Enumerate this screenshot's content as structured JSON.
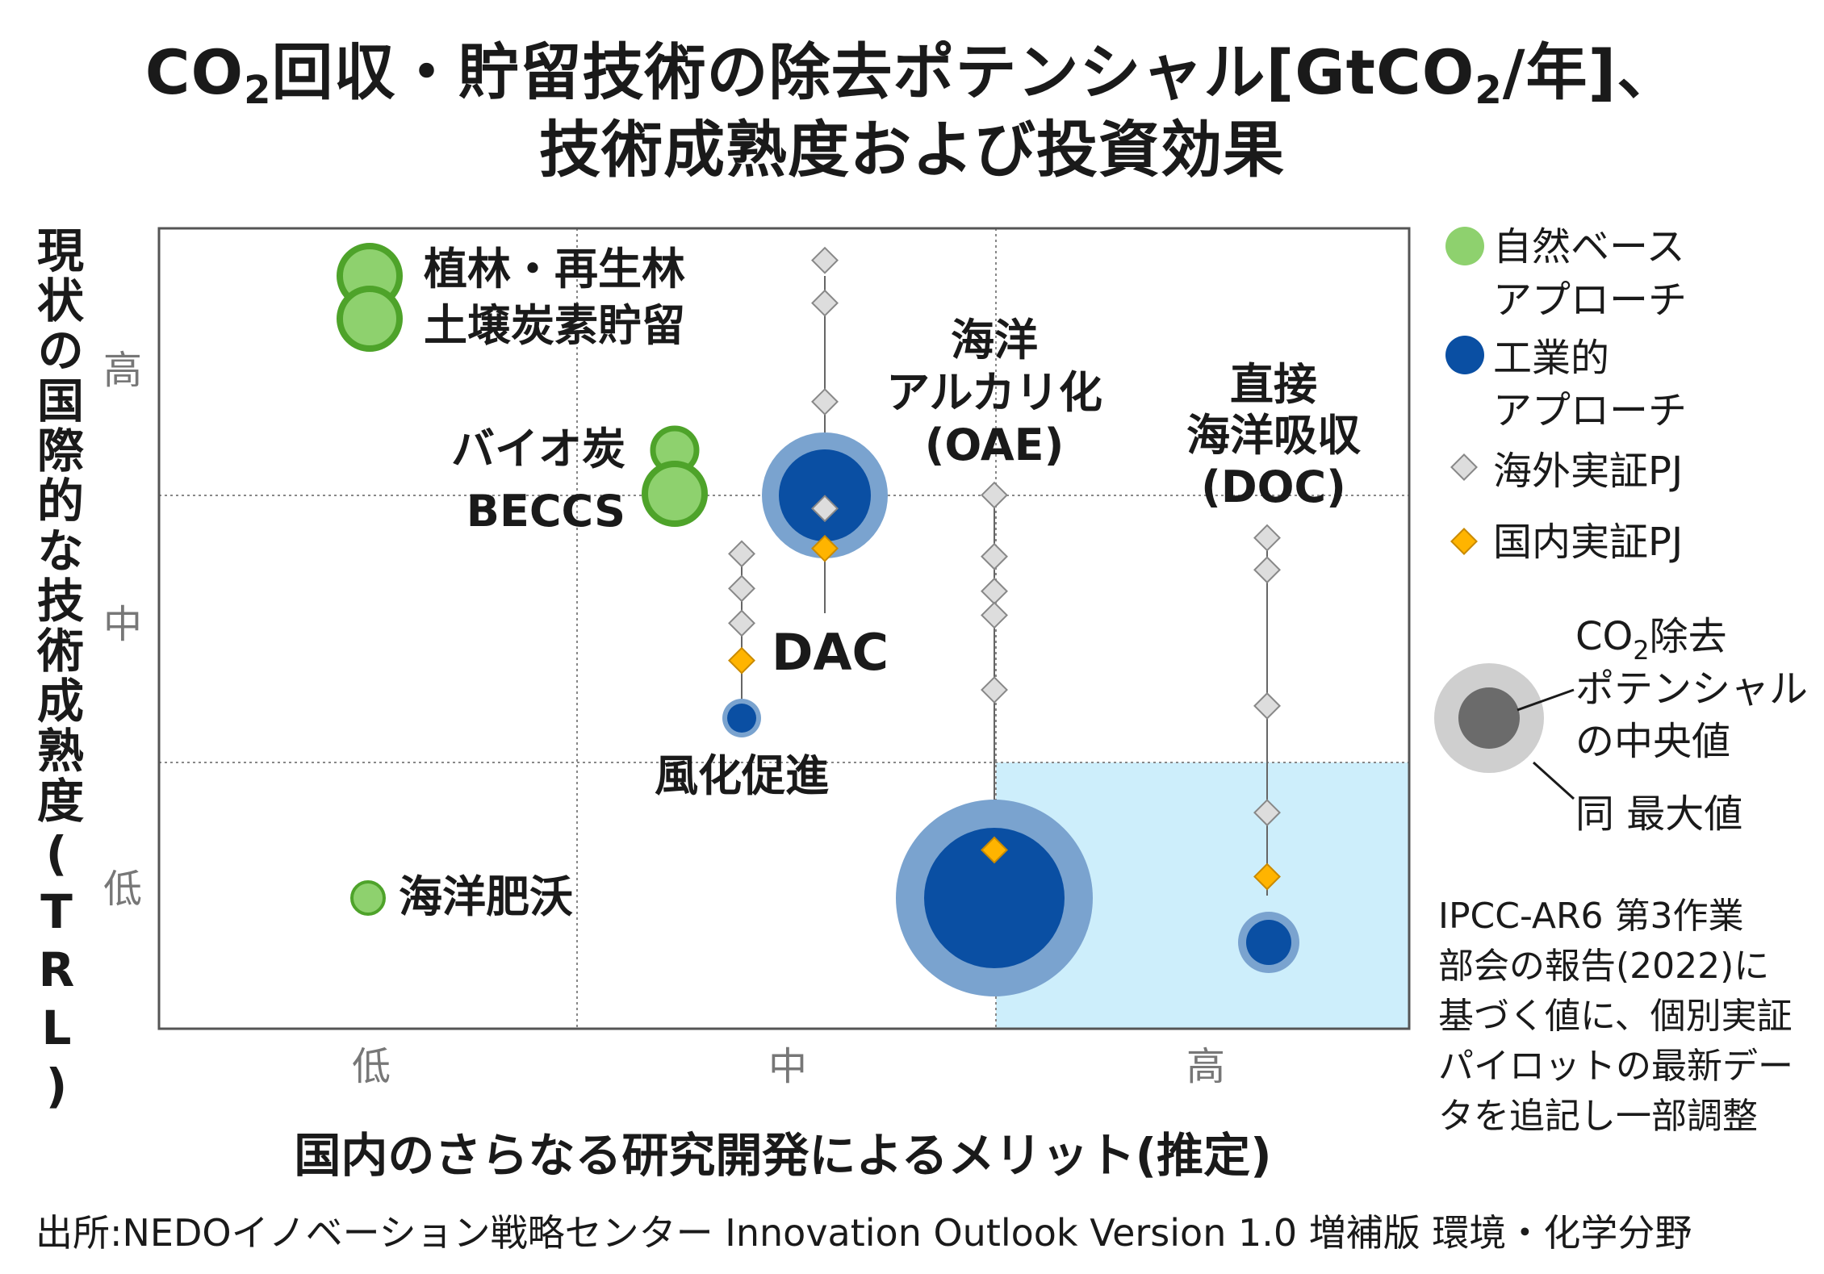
{
  "title": {
    "line1_prefix": "CO",
    "line1_sub": "2",
    "line1_mid": "回収・貯留技術の除去ポテンシャル[GtCO",
    "line1_sub2": "2",
    "line1_suffix": "/年]、",
    "line2": "技術成熟度および投資効果"
  },
  "y_axis_label": "現状の国際的な技術成熟度(TRL)",
  "x_axis_label": "国内のさらなる研究開発によるメリット(推定)",
  "source": "出所:NEDOイノベーション戦略センター Innovation Outlook Version 1.0 増補版 環境・化学分野",
  "note_lines": [
    "IPCC-AR6 第3作業",
    "部会の報告(2022)に",
    "基づく値に、個別実証",
    "パイロットの最新デー",
    "タを追記し一部調整"
  ],
  "legend": {
    "nature": {
      "line1": "自然ベース",
      "line2": "アプローチ",
      "color": "#8ed16e",
      "stroke": "#4ea32a"
    },
    "industry": {
      "line1": "工業的",
      "line2": "アプローチ",
      "color": "#0a4fa3"
    },
    "overseas": {
      "label": "海外実証PJ",
      "color": "#dddddd",
      "stroke": "#888888"
    },
    "domestic": {
      "label": "国内実証PJ",
      "color": "#ffb400",
      "stroke": "#c98a00"
    },
    "bubble_median_line1a": "CO",
    "bubble_median_line1sub": "2",
    "bubble_median_line1b": "除去",
    "bubble_median_line2": "ポテンシャル",
    "bubble_median_line3": "の中央値",
    "bubble_max": "同 最大値"
  },
  "chart_data": {
    "type": "scatter",
    "x_axis": {
      "categories": [
        "低",
        "中",
        "高"
      ]
    },
    "y_axis": {
      "categories": [
        "低",
        "中",
        "高"
      ]
    },
    "highlight_region": {
      "x_from": "中",
      "x_to": "高",
      "y_from": "低",
      "y_to": "低",
      "color": "#cdeefb"
    },
    "series": [
      {
        "name": "植林・再生林",
        "group": "nature",
        "x": 0.5,
        "y": 2.9,
        "median": 0.5,
        "max": 0.6
      },
      {
        "name": "土壌炭素貯留",
        "group": "nature",
        "x": 0.5,
        "y": 2.7,
        "median": 0.5,
        "max": 0.6
      },
      {
        "name": "バイオ炭",
        "group": "nature",
        "x": 1.22,
        "y": 2.2,
        "median": 0.4,
        "max": 0.5
      },
      {
        "name": "BECCS",
        "group": "nature",
        "x": 1.22,
        "y": 2.0,
        "median": 0.55,
        "max": 0.65
      },
      {
        "name": "海洋肥沃",
        "group": "nature",
        "x": 0.5,
        "y": 0.5,
        "median": 0.2,
        "max": 0.25
      },
      {
        "name": "DAC",
        "group": "industry",
        "x": 1.6,
        "y": 2.0,
        "median": 0.9,
        "max": 1.3
      },
      {
        "name": "風化促進",
        "group": "industry",
        "x": 1.4,
        "y": 1.2,
        "median": 0.3,
        "max": 0.4
      },
      {
        "name": "海洋アルカリ化(OAE)",
        "group": "industry",
        "x": 2.0,
        "y": 0.5,
        "median": 1.4,
        "max": 2.0
      },
      {
        "name": "直接海洋吸収(DOC)",
        "group": "industry",
        "x": 2.66,
        "y": 0.33,
        "median": 0.45,
        "max": 0.6
      }
    ],
    "projects": {
      "DAC": {
        "overseas_y": [
          2.88,
          2.72,
          2.35,
          1.95
        ],
        "domestic_y": [
          1.8
        ]
      },
      "風化促進": {
        "overseas_y": [
          1.78,
          1.65,
          1.52
        ],
        "domestic_y": [
          1.38
        ]
      },
      "海洋アルカリ化(OAE)": {
        "overseas_y": [
          2.0,
          1.77,
          1.64,
          1.55,
          1.27
        ],
        "domestic_y": [
          0.67
        ]
      },
      "直接海洋吸収(DOC)": {
        "overseas_y": [
          1.84,
          1.72,
          1.21,
          0.81
        ],
        "domestic_y": [
          0.57
        ]
      }
    }
  },
  "labels": {
    "afforest": "植林・再生林",
    "soil": "土壌炭素貯留",
    "biochar": "バイオ炭",
    "beccs": "BECCS",
    "ocean_fert": "海洋肥沃",
    "dac": "DAC",
    "weathering": "風化促進",
    "oae1": "海洋",
    "oae2": "アルカリ化",
    "oae3": "(OAE)",
    "doc1": "直接",
    "doc2": "海洋吸収",
    "doc3": "(DOC)"
  }
}
